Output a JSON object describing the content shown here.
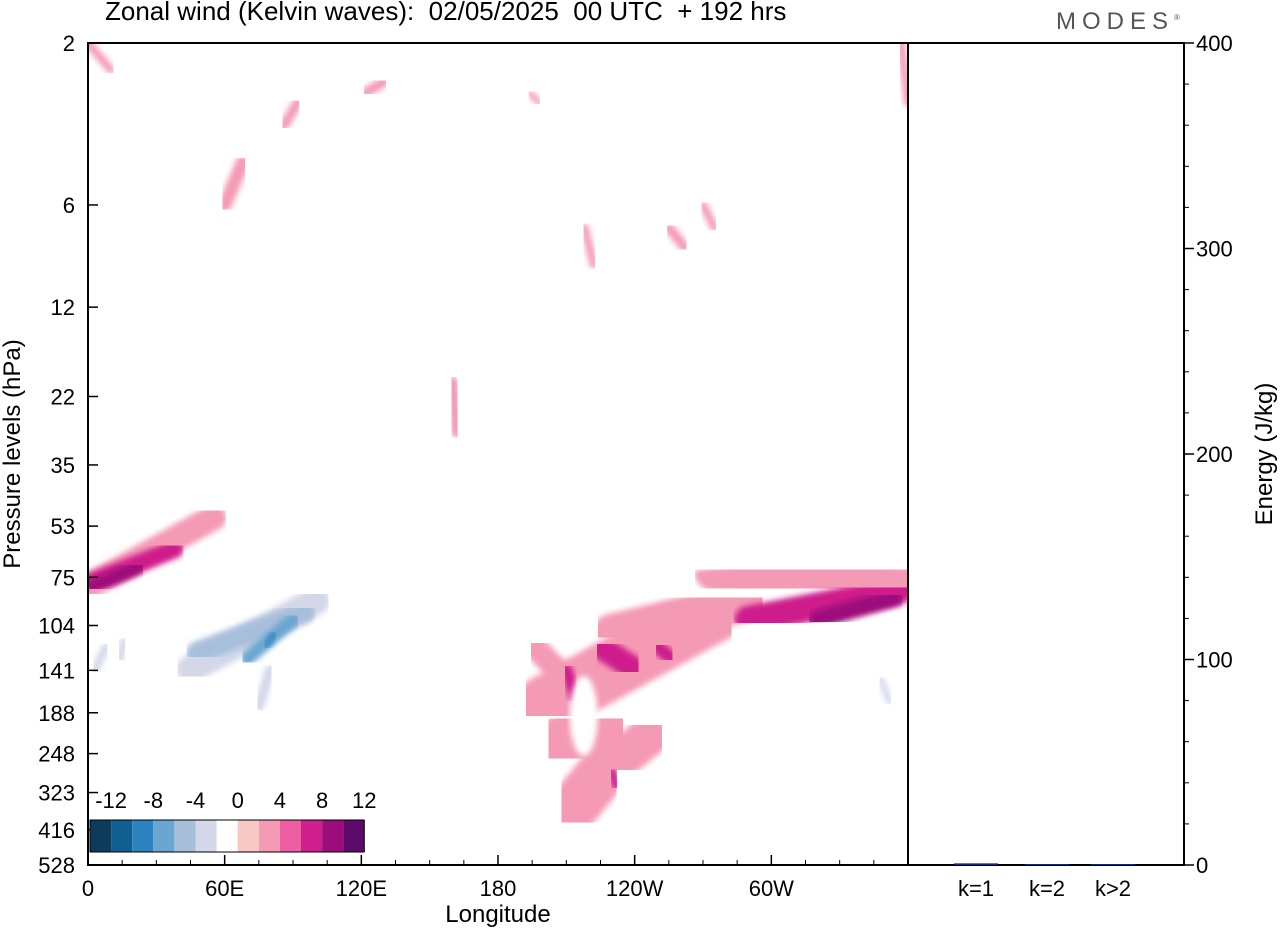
{
  "header": {
    "title": "Zonal wind (Kelvin waves):  02/05/2025  00 UTC  + 192 hrs",
    "brand": "MODES"
  },
  "chart_data": [
    {
      "type": "heatmap",
      "title": "Zonal wind (Kelvin waves):  02/05/2025  00 UTC  + 192 hrs",
      "xlabel": "Longitude",
      "ylabel": "Pressure levels (hPa)",
      "x_ticks": [
        "0",
        "60E",
        "120E",
        "180",
        "120W",
        "60W"
      ],
      "y_ticks": [
        "2",
        "6",
        "12",
        "22",
        "35",
        "53",
        "75",
        "104",
        "141",
        "188",
        "248",
        "323",
        "416",
        "528"
      ],
      "y_scale": "log-pressure",
      "colorbar": {
        "labels": [
          "-12",
          "-8",
          "-4",
          "0",
          "4",
          "8",
          "12"
        ],
        "levels": [
          -14,
          -12,
          -10,
          -8,
          -6,
          -4,
          -2,
          2,
          4,
          6,
          8,
          10,
          12,
          14
        ],
        "colors": [
          "#0d3b5c",
          "#0f5f93",
          "#2b83c0",
          "#6aa6d1",
          "#a8bfdc",
          "#d3d7e8",
          "#ffffff",
          "#f8c8c4",
          "#f59ab5",
          "#ee5ea2",
          "#cf1f8c",
          "#9c0d7b",
          "#5c0a6a"
        ]
      },
      "features": [
        {
          "lon": 10,
          "p": 78,
          "u": 12
        },
        {
          "lon": 270,
          "p": 90,
          "u": 12
        },
        {
          "lon": 65,
          "p": 125,
          "u": -12
        },
        {
          "lon": 15,
          "p": 130,
          "u": -6
        },
        {
          "lon": 225,
          "p": 200,
          "u": 4
        },
        {
          "lon": 232,
          "p": 130,
          "u": 6
        },
        {
          "lon": 200,
          "p": 160,
          "u": 6
        }
      ]
    },
    {
      "type": "bar",
      "ylabel": "Energy (J/kg)",
      "categories": [
        "k=1",
        "k=2",
        "k>2"
      ],
      "values": [
        0.8,
        0.2,
        0.3
      ],
      "ylim": [
        0,
        400
      ],
      "y_ticks": [
        "0",
        "100",
        "200",
        "300",
        "400"
      ],
      "colors": [
        "#0a2a7a",
        "#0a2a7a",
        "#0a2a7a"
      ]
    }
  ]
}
